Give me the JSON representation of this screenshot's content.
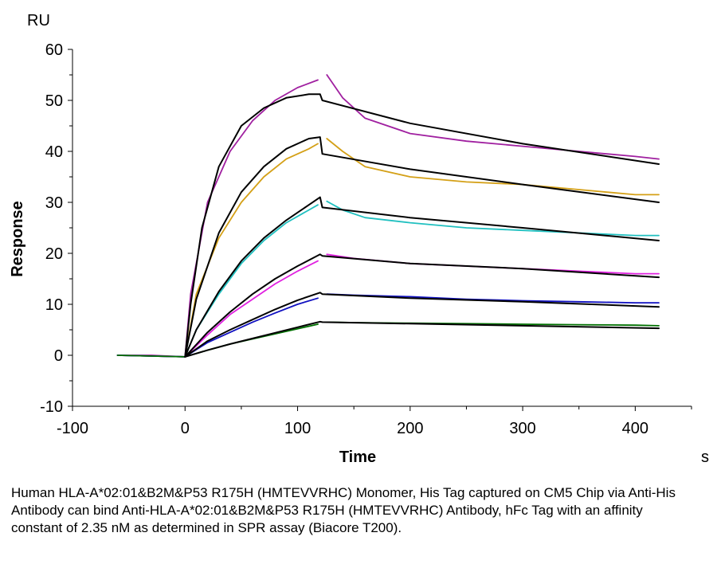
{
  "chart_data": {
    "type": "line",
    "title": "",
    "xlabel": "Time",
    "x_unit": "s",
    "ylabel": "Response",
    "y_unit": "RU",
    "xlim": [
      -100,
      450
    ],
    "ylim": [
      -10,
      60
    ],
    "xticks": [
      -100,
      0,
      100,
      200,
      300,
      400
    ],
    "yticks": [
      -10,
      0,
      10,
      20,
      30,
      40,
      50,
      60
    ],
    "grid": false,
    "legend": "none",
    "series": [
      {
        "color": "#a020a0",
        "role": "measured",
        "x": [
          -60,
          -30,
          0,
          5,
          20,
          40,
          60,
          80,
          100,
          118
        ],
        "y": [
          0,
          0,
          -0.3,
          12,
          30,
          40,
          46,
          50,
          52.5,
          54
        ]
      },
      {
        "color": "#a020a0",
        "role": "measured",
        "x": [
          126,
          140,
          160,
          200,
          250,
          300,
          350,
          400,
          421
        ],
        "y": [
          55,
          50.5,
          46.5,
          43.5,
          42,
          41,
          40,
          39,
          38.5
        ]
      },
      {
        "color": "#000000",
        "role": "fit",
        "x": [
          0,
          5,
          15,
          30,
          50,
          70,
          90,
          110,
          120,
          122,
          200,
          300,
          421
        ],
        "y": [
          -0.3,
          10,
          25,
          37,
          45,
          48.5,
          50.5,
          51.2,
          51.2,
          50,
          45.5,
          41.5,
          37.5
        ]
      },
      {
        "color": "#d4a017",
        "role": "measured",
        "x": [
          -60,
          0,
          10,
          30,
          50,
          70,
          90,
          110,
          118
        ],
        "y": [
          0,
          -0.3,
          12,
          23,
          30,
          35,
          38.5,
          40.5,
          41.5
        ]
      },
      {
        "color": "#d4a017",
        "role": "measured",
        "x": [
          126,
          140,
          160,
          200,
          250,
          300,
          350,
          400,
          421
        ],
        "y": [
          42.5,
          40,
          37,
          35,
          34,
          33.5,
          32.5,
          31.5,
          31.5
        ]
      },
      {
        "color": "#000000",
        "role": "fit",
        "x": [
          0,
          10,
          30,
          50,
          70,
          90,
          110,
          120,
          122,
          200,
          300,
          421
        ],
        "y": [
          -0.3,
          11,
          24,
          32,
          37,
          40.5,
          42.5,
          42.8,
          39.5,
          36.5,
          33.5,
          30
        ]
      },
      {
        "color": "#20c0c0",
        "role": "measured",
        "x": [
          -60,
          0,
          10,
          30,
          50,
          70,
          90,
          110,
          118
        ],
        "y": [
          0,
          -0.3,
          5,
          12,
          18,
          22.5,
          26,
          28.5,
          29.5
        ]
      },
      {
        "color": "#20c0c0",
        "role": "measured",
        "x": [
          126,
          140,
          160,
          200,
          250,
          300,
          350,
          400,
          421
        ],
        "y": [
          30.2,
          28.5,
          27,
          26,
          25,
          24.5,
          24,
          23.5,
          23.5
        ]
      },
      {
        "color": "#000000",
        "role": "fit",
        "x": [
          0,
          10,
          30,
          50,
          70,
          90,
          110,
          120,
          122,
          200,
          300,
          421
        ],
        "y": [
          -0.3,
          5,
          12.5,
          18.5,
          23,
          26.5,
          29.5,
          31,
          29,
          27,
          25,
          22.5
        ]
      },
      {
        "color": "#e020e0",
        "role": "measured",
        "x": [
          -60,
          0,
          20,
          40,
          60,
          80,
          100,
          118
        ],
        "y": [
          0,
          -0.3,
          4,
          8,
          11,
          14,
          16.5,
          18.5
        ]
      },
      {
        "color": "#e020e0",
        "role": "measured",
        "x": [
          126,
          150,
          200,
          250,
          300,
          350,
          400,
          421
        ],
        "y": [
          19.8,
          19,
          18,
          17.5,
          17,
          16.5,
          16,
          16
        ]
      },
      {
        "color": "#000000",
        "role": "fit",
        "x": [
          0,
          20,
          40,
          60,
          80,
          100,
          120,
          122,
          200,
          300,
          421
        ],
        "y": [
          -0.3,
          4.5,
          8.5,
          12,
          15,
          17.5,
          19.8,
          19.5,
          18,
          17,
          15.3
        ]
      },
      {
        "color": "#1010c0",
        "role": "measured",
        "x": [
          -60,
          0,
          20,
          40,
          60,
          80,
          100,
          118
        ],
        "y": [
          0,
          -0.3,
          2.5,
          4.5,
          6.5,
          8.3,
          10,
          11.2
        ]
      },
      {
        "color": "#1010c0",
        "role": "measured",
        "x": [
          126,
          150,
          200,
          250,
          300,
          350,
          400,
          421
        ],
        "y": [
          12,
          11.8,
          11.5,
          11,
          10.7,
          10.5,
          10.3,
          10.3
        ]
      },
      {
        "color": "#000000",
        "role": "fit",
        "x": [
          0,
          20,
          40,
          60,
          80,
          100,
          120,
          122,
          200,
          300,
          421
        ],
        "y": [
          -0.3,
          2.8,
          5,
          7,
          9,
          10.8,
          12.3,
          12,
          11.2,
          10.5,
          9.5
        ]
      },
      {
        "color": "#007000",
        "role": "measured",
        "x": [
          -60,
          0,
          20,
          40,
          60,
          80,
          100,
          118
        ],
        "y": [
          0,
          -0.3,
          1,
          2.2,
          3.2,
          4.2,
          5.2,
          6.1
        ]
      },
      {
        "color": "#007000",
        "role": "measured",
        "x": [
          126,
          150,
          200,
          250,
          300,
          350,
          400,
          421
        ],
        "y": [
          6.5,
          6.4,
          6.3,
          6.2,
          6.1,
          6,
          5.9,
          5.8
        ]
      },
      {
        "color": "#000000",
        "role": "fit",
        "x": [
          0,
          20,
          40,
          60,
          80,
          100,
          120,
          122,
          200,
          300,
          421
        ],
        "y": [
          -0.3,
          1,
          2.2,
          3.3,
          4.4,
          5.5,
          6.6,
          6.5,
          6.2,
          5.8,
          5.3
        ]
      }
    ]
  },
  "caption": "Human HLA-A*02:01&B2M&P53 R175H (HMTEVVRHC) Monomer, His Tag captured on CM5 Chip via Anti-His Antibody can bind Anti-HLA-A*02:01&B2M&P53 R175H (HMTEVVRHC) Antibody, hFc Tag with an affinity constant of 2.35 nM as determined in SPR assay (Biacore T200)."
}
